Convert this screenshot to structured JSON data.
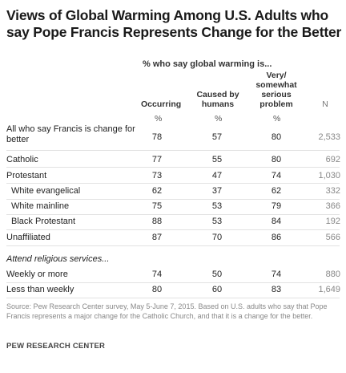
{
  "title": "Views of Global Warming Among U.S. Adults who say Pope Francis Represents Change for the Better",
  "subheader": "% who say global warming is...",
  "columns": {
    "occurring": "Occurring",
    "caused_line1": "Caused by",
    "caused_line2": "humans",
    "serious_line1": "Very/",
    "serious_line2": "somewhat",
    "serious_line3": "serious",
    "serious_line4": "problem",
    "n": "N"
  },
  "pct_symbol": "%",
  "rows": [
    {
      "label": "All who say Francis is change for better",
      "occurring": "78",
      "caused": "57",
      "serious": "80",
      "n": "2,533"
    },
    {
      "label": "Catholic",
      "occurring": "77",
      "caused": "55",
      "serious": "80",
      "n": "692"
    },
    {
      "label": "Protestant",
      "occurring": "73",
      "caused": "47",
      "serious": "74",
      "n": "1,030"
    },
    {
      "label": "White evangelical",
      "occurring": "62",
      "caused": "37",
      "serious": "62",
      "n": "332"
    },
    {
      "label": "White mainline",
      "occurring": "75",
      "caused": "53",
      "serious": "79",
      "n": "366"
    },
    {
      "label": "Black Protestant",
      "occurring": "88",
      "caused": "53",
      "serious": "84",
      "n": "192"
    },
    {
      "label": "Unaffiliated",
      "occurring": "87",
      "caused": "70",
      "serious": "86",
      "n": "566"
    }
  ],
  "attend_heading": "Attend religious services...",
  "attend_rows": [
    {
      "label": "Weekly or more",
      "occurring": "74",
      "caused": "50",
      "serious": "74",
      "n": "880"
    },
    {
      "label": "Less than weekly",
      "occurring": "80",
      "caused": "60",
      "serious": "83",
      "n": "1,649"
    }
  ],
  "source": "Source: Pew Research Center survey, May 5-June 7, 2015. Based on U.S. adults who say that Pope Francis represents a major change for the Catholic Church, and that it is a change for the better.",
  "brand": "PEW RESEARCH CENTER"
}
